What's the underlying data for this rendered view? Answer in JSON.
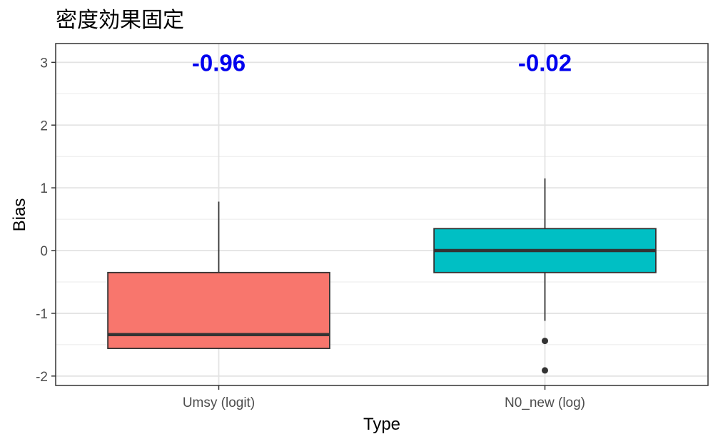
{
  "chart_data": {
    "type": "box",
    "title": "密度効果固定",
    "xlabel": "Type",
    "ylabel": "Bias",
    "ylim": [
      -2.15,
      3.3
    ],
    "yticks": [
      -2,
      -1,
      0,
      1,
      2,
      3
    ],
    "y_tick_labels": [
      "-2",
      "-1",
      "0",
      "1",
      "2",
      "3"
    ],
    "grid": true,
    "legend": "none",
    "annotation_color": "#0000ee",
    "categories": [
      "Umsy (logit)",
      "N0_new (log)"
    ],
    "boxes": [
      {
        "category": "Umsy (logit)",
        "whisker_low": -1.56,
        "q1": -1.56,
        "median": -1.34,
        "q3": -0.35,
        "whisker_high": 0.78,
        "outliers": [],
        "color": "#f8766d",
        "annotation": "-0.96"
      },
      {
        "category": "N0_new (log)",
        "whisker_low": -1.12,
        "q1": -0.35,
        "median": 0.0,
        "q3": 0.35,
        "whisker_high": 1.15,
        "outliers": [
          -1.44,
          -1.91
        ],
        "color": "#00bfc4",
        "annotation": "-0.02"
      }
    ]
  }
}
